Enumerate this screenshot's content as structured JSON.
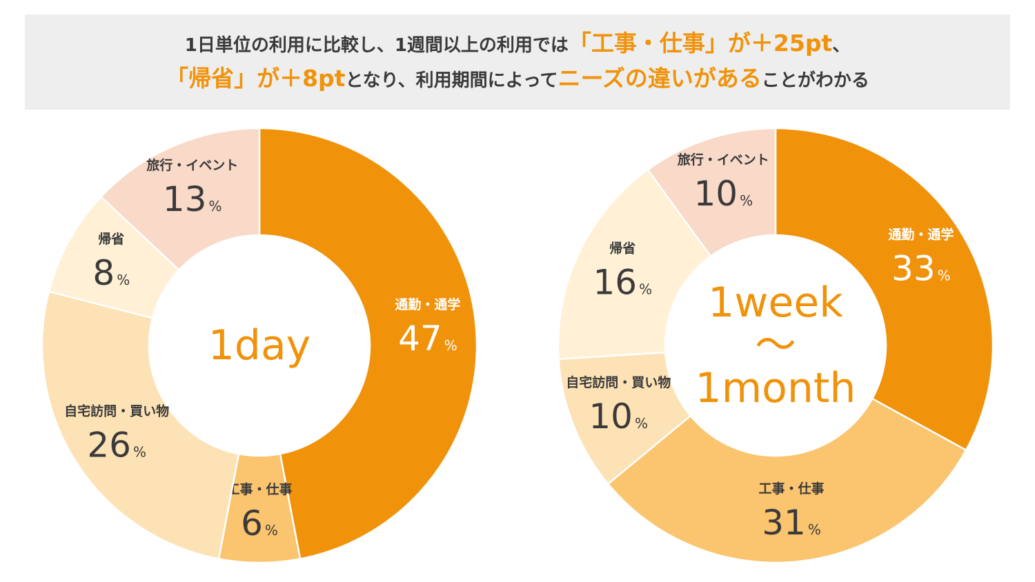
{
  "headline": {
    "line1": [
      {
        "text": "1日単位の利用に比較し、1週間以上の利用では",
        "em": false
      },
      {
        "text": "「工事・仕事」が＋25pt",
        "em": true
      },
      {
        "text": "、",
        "em": false
      }
    ],
    "line2": [
      {
        "text": "「帰省」が＋8pt",
        "em": true
      },
      {
        "text": "となり、利用期間によって",
        "em": false
      },
      {
        "text": "ニーズの違いがある",
        "em": true
      },
      {
        "text": "ことがわかる",
        "em": false
      }
    ]
  },
  "chart_data": [
    {
      "type": "pie",
      "title": "",
      "center_label": [
        "1day"
      ],
      "unit": "%",
      "slices": [
        {
          "label": "通勤・通学",
          "value": 47,
          "color": "#f0920a"
        },
        {
          "label": "工事・仕事",
          "value": 6,
          "color": "#fbc46e"
        },
        {
          "label": "自宅訪問・買い物",
          "value": 26,
          "color": "#fde2b6"
        },
        {
          "label": "帰省",
          "value": 8,
          "color": "#fff0d6"
        },
        {
          "label": "旅行・イベント",
          "value": 13,
          "color": "#f9d9c8"
        }
      ]
    },
    {
      "type": "pie",
      "title": "",
      "center_label": [
        "1week",
        "～",
        "1month"
      ],
      "unit": "%",
      "slices": [
        {
          "label": "通勤・通学",
          "value": 33,
          "color": "#f0920a"
        },
        {
          "label": "工事・仕事",
          "value": 31,
          "color": "#fbc46e"
        },
        {
          "label": "自宅訪問・買い物",
          "value": 10,
          "color": "#fde2b6"
        },
        {
          "label": "帰省",
          "value": 16,
          "color": "#fff0d6"
        },
        {
          "label": "旅行・イベント",
          "value": 10,
          "color": "#f9d9c8"
        }
      ]
    }
  ]
}
